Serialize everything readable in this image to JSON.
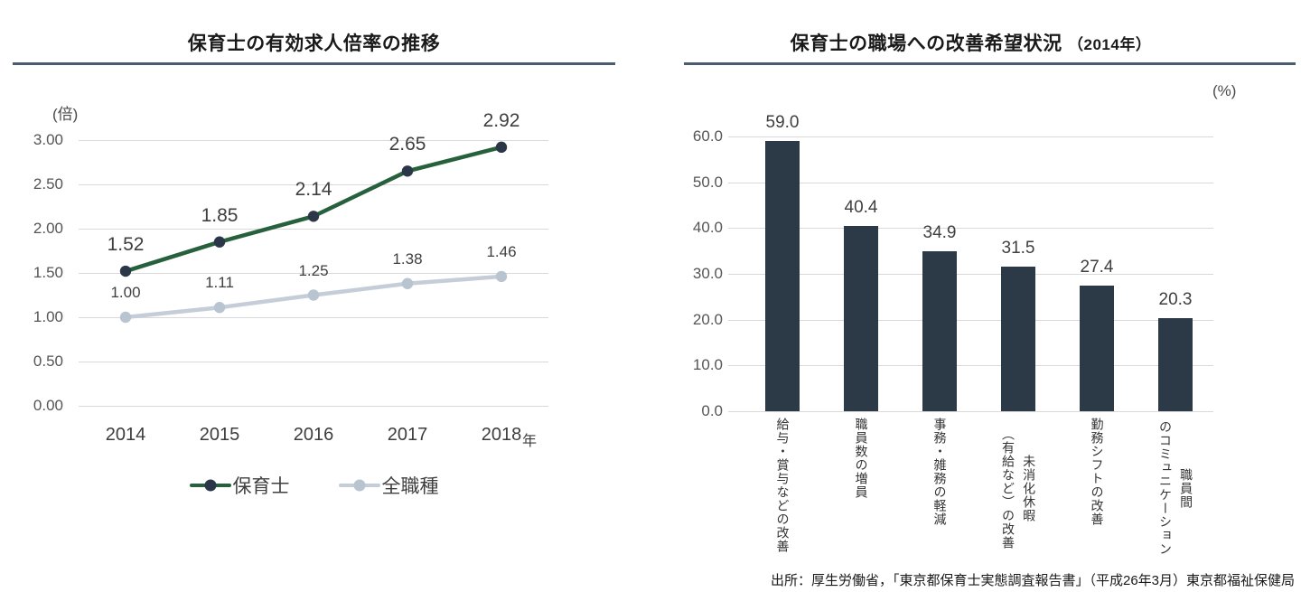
{
  "page": {
    "background": "#ffffff",
    "accent_rule_color": "#4a5c70",
    "gridline_color": "#d9d9d9"
  },
  "source_note": "出所：厚生労働省，「東京都保育士実態調査報告書」（平成26年3月）東京都福祉保健局",
  "chart_data": [
    {
      "type": "line",
      "title": "保育士の有効求人倍率の推移",
      "unit_label": "(倍)",
      "categories": [
        "2014",
        "2015",
        "2016",
        "2017",
        "2018"
      ],
      "x_axis_suffix": "年",
      "series": [
        {
          "name": "保育士",
          "values": [
            1.52,
            1.85,
            2.14,
            2.65,
            2.92
          ],
          "value_labels": [
            "1.52",
            "1.85",
            "2.14",
            "2.65",
            "2.92"
          ],
          "line_color": "#26603c",
          "marker_color": "#2b3648"
        },
        {
          "name": "全職種",
          "values": [
            1.0,
            1.11,
            1.25,
            1.38,
            1.46
          ],
          "value_labels": [
            "1.00",
            "1.11",
            "1.25",
            "1.38",
            "1.46"
          ],
          "line_color": "#c5cdd8",
          "marker_color": "#b9c4d1"
        }
      ],
      "ylim": [
        0.0,
        3.0
      ],
      "yticks": [
        "3.00",
        "2.50",
        "2.00",
        "1.50",
        "1.00",
        "0.50",
        "0.00"
      ],
      "grid": true,
      "legend_position": "bottom"
    },
    {
      "type": "bar",
      "title": "保育士の職場への改善希望状況",
      "title_suffix": "（2014年）",
      "unit_label": "(%)",
      "categories": [
        [
          "給与・賞与などの改善"
        ],
        [
          "職員数の増員"
        ],
        [
          "事務・雑務の軽減"
        ],
        [
          "未消化休暇",
          "（有給など）の改善"
        ],
        [
          "勤務シフトの改善"
        ],
        [
          "職員間",
          "のコミュニケーション"
        ]
      ],
      "values": [
        59.0,
        40.4,
        34.9,
        31.5,
        27.4,
        20.3
      ],
      "value_labels": [
        "59.0",
        "40.4",
        "34.9",
        "31.5",
        "27.4",
        "20.3"
      ],
      "bar_color": "#2c3946",
      "ylim": [
        0,
        60
      ],
      "yticks": [
        "60.0",
        "50.0",
        "40.0",
        "30.0",
        "20.0",
        "10.0",
        "0.0"
      ],
      "grid": true
    }
  ]
}
